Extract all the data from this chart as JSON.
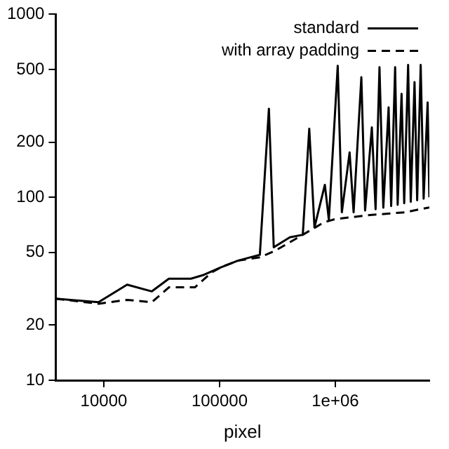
{
  "chart_data": {
    "type": "line",
    "xlabel": "pixel",
    "log": "xy",
    "legend": "top right",
    "grid": false,
    "marker": "none",
    "xlim": [
      3840,
      6500000
    ],
    "ylim": [
      10,
      1000
    ],
    "xticks": [
      {
        "value": 10000,
        "label": "10000"
      },
      {
        "value": 100000,
        "label": "100000"
      },
      {
        "value": 1000000,
        "label": "1e+06"
      }
    ],
    "yticks": [
      10,
      20,
      50,
      100,
      200,
      500,
      1000
    ],
    "series": [
      {
        "name": "standard",
        "color": "#000000",
        "line_style": "solid",
        "x": [
          3840,
          9000,
          15900,
          26000,
          36500,
          56600,
          73300,
          102600,
          143600,
          223000,
          267000,
          294000,
          405000,
          524000,
          596000,
          661000,
          813000,
          880000,
          1050000,
          1140000,
          1330000,
          1440000,
          1680000,
          1810000,
          2070000,
          2230000,
          2410000,
          2600000,
          2890000,
          3040000,
          3290000,
          3460000,
          3740000,
          3940000,
          4260000,
          4490000,
          4840000,
          5100000,
          5470000,
          5800000,
          6280000,
          6500000
        ],
        "values": [
          27.9,
          26.7,
          33.3,
          30.6,
          35.9,
          35.9,
          37.7,
          41.4,
          45,
          48.5,
          305,
          53.3,
          60.4,
          62.4,
          237,
          68.5,
          117,
          75.3,
          523,
          82.8,
          176,
          82.8,
          453,
          84.7,
          241,
          86,
          514,
          87.7,
          310,
          89.5,
          514,
          91,
          368,
          92.8,
          529,
          94.5,
          426,
          96.3,
          529,
          98.2,
          330,
          100
        ]
      },
      {
        "name": "with array padding",
        "color": "#000000",
        "line_style": "dashed",
        "x": [
          3840,
          9000,
          15900,
          26000,
          36500,
          61200,
          85700,
          102600,
          143600,
          223000,
          300000,
          524000,
          800000,
          1000000,
          2000000,
          4000000,
          6500000
        ],
        "values": [
          27.9,
          26.2,
          27.5,
          26.7,
          32.2,
          32.2,
          38.9,
          41.4,
          45,
          47,
          50.9,
          62.4,
          73,
          76,
          80,
          82.8,
          88
        ]
      }
    ]
  }
}
